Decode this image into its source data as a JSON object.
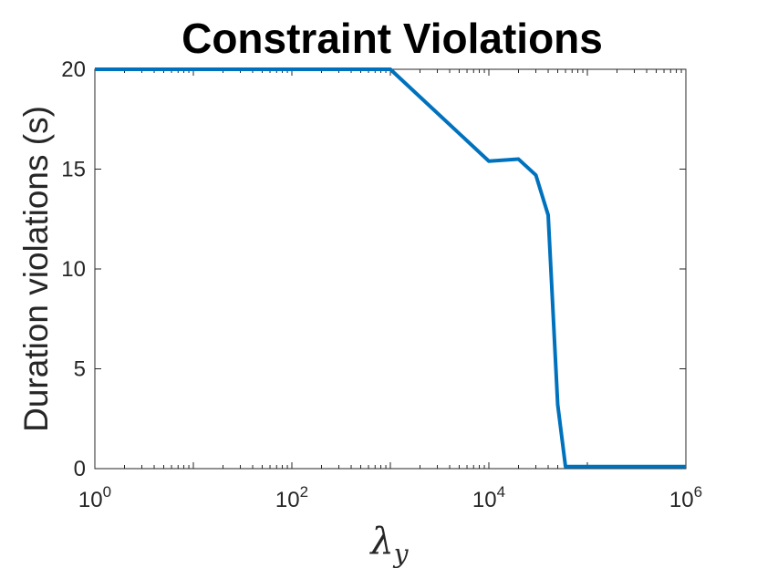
{
  "chart_data": {
    "type": "line",
    "title": "Constraint Violations",
    "xlabel": "λ",
    "xlabel_subscript": "y",
    "ylabel": "Duration violations (s)",
    "xscale": "log",
    "xlim": [
      1,
      1000000
    ],
    "ylim": [
      0,
      20
    ],
    "grid": false,
    "xticks": [
      {
        "value": 1,
        "base": "10",
        "exp": "0"
      },
      {
        "value": 100,
        "base": "10",
        "exp": "2"
      },
      {
        "value": 10000,
        "base": "10",
        "exp": "4"
      },
      {
        "value": 1000000,
        "base": "10",
        "exp": "6"
      }
    ],
    "yticks": [
      {
        "value": 0,
        "label": "0"
      },
      {
        "value": 5,
        "label": "5"
      },
      {
        "value": 10,
        "label": "10"
      },
      {
        "value": 15,
        "label": "15"
      },
      {
        "value": 20,
        "label": "20"
      }
    ],
    "series": [
      {
        "color": "#0072BD",
        "x": [
          1,
          1000,
          10000,
          20000,
          30000,
          40000,
          50000,
          60000,
          1000000
        ],
        "y": [
          20,
          20,
          15.4,
          15.5,
          14.7,
          12.7,
          3.2,
          0.1,
          0.1
        ]
      }
    ]
  }
}
